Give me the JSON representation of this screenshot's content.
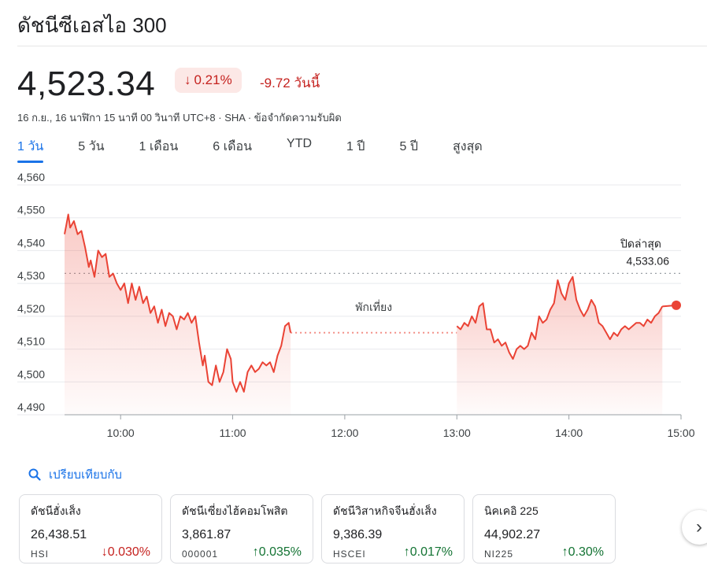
{
  "title": "ดัชนีซีเอสไอ 300",
  "price": "4,523.34",
  "change_pct": "0.21%",
  "change_abs": "-9.72 วันนี้",
  "meta": "16 ก.ย., 16 นาฬิกา 15 นาที 00 วินาที UTC+8 · SHA · ข้อจำกัดความรับผิด",
  "tabs": [
    "1 วัน",
    "5 วัน",
    "1 เดือน",
    "6 เดือน",
    "YTD",
    "1 ปี",
    "5 ปี",
    "สูงสุด"
  ],
  "colors": {
    "accent": "#1a73e8",
    "down": "#c5221f",
    "up": "#137333",
    "line": "#ea4335"
  },
  "chart_data": {
    "type": "area",
    "y_ticks": [
      "4,560",
      "4,550",
      "4,540",
      "4,530",
      "4,520",
      "4,510",
      "4,500",
      "4,490"
    ],
    "ylim": [
      4490,
      4560
    ],
    "x_ticks": [
      "10:00",
      "11:00",
      "12:00",
      "13:00",
      "14:00",
      "15:00"
    ],
    "xlim": [
      "09:30",
      "15:00"
    ],
    "previous_close_label": "ปิดล่าสุด",
    "previous_close_value": "4,533.06",
    "previous_close": 4533.06,
    "break_label": "พักเที่ยง",
    "morning": [
      [
        "09:30",
        4545
      ],
      [
        "09:31",
        4548
      ],
      [
        "09:32",
        4551
      ],
      [
        "09:33",
        4547
      ],
      [
        "09:35",
        4549
      ],
      [
        "09:37",
        4545
      ],
      [
        "09:39",
        4546
      ],
      [
        "09:41",
        4541
      ],
      [
        "09:43",
        4535
      ],
      [
        "09:44",
        4537
      ],
      [
        "09:46",
        4532
      ],
      [
        "09:48",
        4540
      ],
      [
        "09:50",
        4538
      ],
      [
        "09:52",
        4539
      ],
      [
        "09:54",
        4532
      ],
      [
        "09:56",
        4533
      ],
      [
        "09:58",
        4530
      ],
      [
        "10:00",
        4528
      ],
      [
        "10:02",
        4530
      ],
      [
        "10:04",
        4524
      ],
      [
        "10:06",
        4530
      ],
      [
        "10:08",
        4525
      ],
      [
        "10:10",
        4529
      ],
      [
        "10:12",
        4524
      ],
      [
        "10:14",
        4526
      ],
      [
        "10:16",
        4521
      ],
      [
        "10:18",
        4523
      ],
      [
        "10:20",
        4518
      ],
      [
        "10:22",
        4522
      ],
      [
        "10:24",
        4517
      ],
      [
        "10:26",
        4521
      ],
      [
        "10:28",
        4520
      ],
      [
        "10:30",
        4516
      ],
      [
        "10:32",
        4520
      ],
      [
        "10:34",
        4519
      ],
      [
        "10:36",
        4521
      ],
      [
        "10:38",
        4518
      ],
      [
        "10:40",
        4520
      ],
      [
        "10:42",
        4512
      ],
      [
        "10:44",
        4505
      ],
      [
        "10:45",
        4508
      ],
      [
        "10:47",
        4500
      ],
      [
        "10:49",
        4499
      ],
      [
        "10:51",
        4505
      ],
      [
        "10:53",
        4500
      ],
      [
        "10:55",
        4503
      ],
      [
        "10:57",
        4510
      ],
      [
        "10:59",
        4507
      ],
      [
        "11:00",
        4500
      ],
      [
        "11:02",
        4497
      ],
      [
        "11:04",
        4500
      ],
      [
        "11:06",
        4497
      ],
      [
        "11:08",
        4503
      ],
      [
        "11:10",
        4505
      ],
      [
        "11:12",
        4503
      ],
      [
        "11:14",
        4504
      ],
      [
        "11:16",
        4506
      ],
      [
        "11:18",
        4505
      ],
      [
        "11:20",
        4506
      ],
      [
        "11:22",
        4503
      ],
      [
        "11:24",
        4508
      ],
      [
        "11:26",
        4511
      ],
      [
        "11:28",
        4517
      ],
      [
        "11:30",
        4518
      ],
      [
        "11:31",
        4515
      ]
    ],
    "afternoon": [
      [
        "13:00",
        4517
      ],
      [
        "13:02",
        4516
      ],
      [
        "13:04",
        4518
      ],
      [
        "13:06",
        4517
      ],
      [
        "13:08",
        4520
      ],
      [
        "13:10",
        4518
      ],
      [
        "13:12",
        4523
      ],
      [
        "13:14",
        4524
      ],
      [
        "13:16",
        4516
      ],
      [
        "13:18",
        4516
      ],
      [
        "13:20",
        4512
      ],
      [
        "13:22",
        4513
      ],
      [
        "13:24",
        4511
      ],
      [
        "13:26",
        4512
      ],
      [
        "13:28",
        4509
      ],
      [
        "13:30",
        4507
      ],
      [
        "13:32",
        4510
      ],
      [
        "13:34",
        4511
      ],
      [
        "13:36",
        4510
      ],
      [
        "13:38",
        4511
      ],
      [
        "13:40",
        4515
      ],
      [
        "13:42",
        4513
      ],
      [
        "13:44",
        4520
      ],
      [
        "13:46",
        4518
      ],
      [
        "13:48",
        4519
      ],
      [
        "13:50",
        4522
      ],
      [
        "13:52",
        4524
      ],
      [
        "13:54",
        4531
      ],
      [
        "13:56",
        4527
      ],
      [
        "13:58",
        4525
      ],
      [
        "14:00",
        4530
      ],
      [
        "14:02",
        4532
      ],
      [
        "14:04",
        4525
      ],
      [
        "14:06",
        4522
      ],
      [
        "14:08",
        4520
      ],
      [
        "14:10",
        4522
      ],
      [
        "14:12",
        4525
      ],
      [
        "14:14",
        4523
      ],
      [
        "14:16",
        4518
      ],
      [
        "14:18",
        4517
      ],
      [
        "14:20",
        4515
      ],
      [
        "14:22",
        4513
      ],
      [
        "14:24",
        4515
      ],
      [
        "14:26",
        4514
      ],
      [
        "14:28",
        4516
      ],
      [
        "14:30",
        4517
      ],
      [
        "14:32",
        4516
      ],
      [
        "14:34",
        4517
      ],
      [
        "14:36",
        4518
      ],
      [
        "14:38",
        4518
      ],
      [
        "14:40",
        4517
      ],
      [
        "14:42",
        4519
      ],
      [
        "14:44",
        4518
      ],
      [
        "14:46",
        4520
      ],
      [
        "14:48",
        4521
      ],
      [
        "14:50",
        4523
      ]
    ],
    "last_point": [
      "15:00",
      4523.34
    ],
    "grid": "horizontal"
  },
  "compare": {
    "label": "เปรียบเทียบกับ"
  },
  "cards": [
    {
      "name": "ดัชนีฮั่งเส็ง",
      "value": "26,438.51",
      "symbol": "HSI",
      "change": "0.030%",
      "direction": "down"
    },
    {
      "name": "ดัชนีเซี่ยงไฮ้คอมโพสิต",
      "value": "3,861.87",
      "symbol": "000001",
      "change": "0.035%",
      "direction": "up"
    },
    {
      "name": "ดัชนีวิสาหกิจจีนฮั่งเส็ง",
      "value": "9,386.39",
      "symbol": "HSCEI",
      "change": "0.017%",
      "direction": "up"
    },
    {
      "name": "นิคเคอิ 225",
      "value": "44,902.27",
      "symbol": "NI225",
      "change": "0.30%",
      "direction": "up"
    }
  ]
}
